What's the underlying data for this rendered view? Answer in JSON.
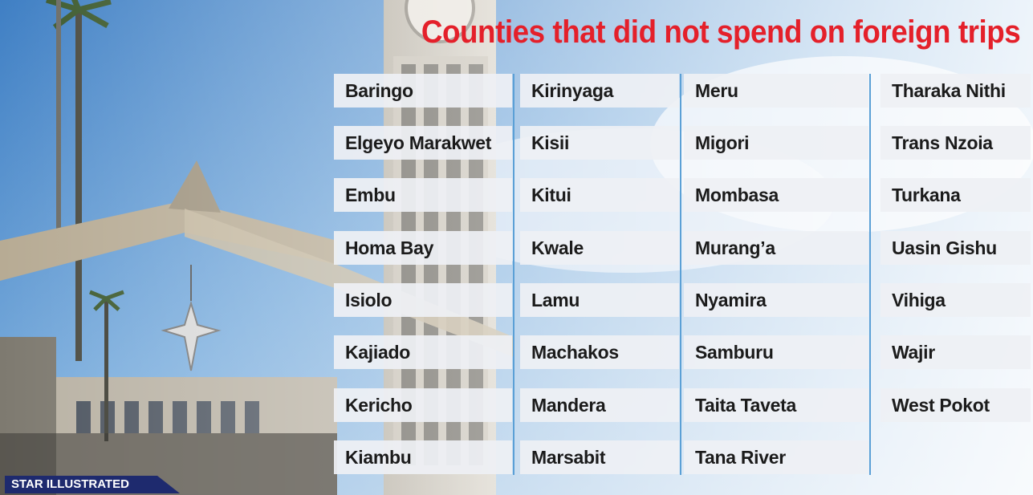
{
  "headline": "Counties that did not spend on foreign trips",
  "credit": "STAR ILLUSTRATED",
  "colors": {
    "headline": "#e4202a",
    "divider": "#5ba0d6",
    "credit_bg": "#1e2a6e",
    "cell_bg": "#eef0f4"
  },
  "columns": [
    [
      "Baringo",
      "Elgeyo Marakwet",
      "Embu",
      "Homa Bay",
      "Isiolo",
      "Kajiado",
      "Kericho",
      "Kiambu"
    ],
    [
      "Kirinyaga",
      "Kisii",
      "Kitui",
      "Kwale",
      "Lamu",
      "Machakos",
      "Mandera",
      "Marsabit"
    ],
    [
      "Meru",
      "Migori",
      "Mombasa",
      "Murang’a",
      "Nyamira",
      "Samburu",
      "Taita Taveta",
      "Tana River"
    ],
    [
      "Tharaka Nithi",
      "Trans Nzoia",
      "Turkana",
      "Uasin Gishu",
      "Vihiga",
      "Wajir",
      "West Pokot"
    ]
  ]
}
